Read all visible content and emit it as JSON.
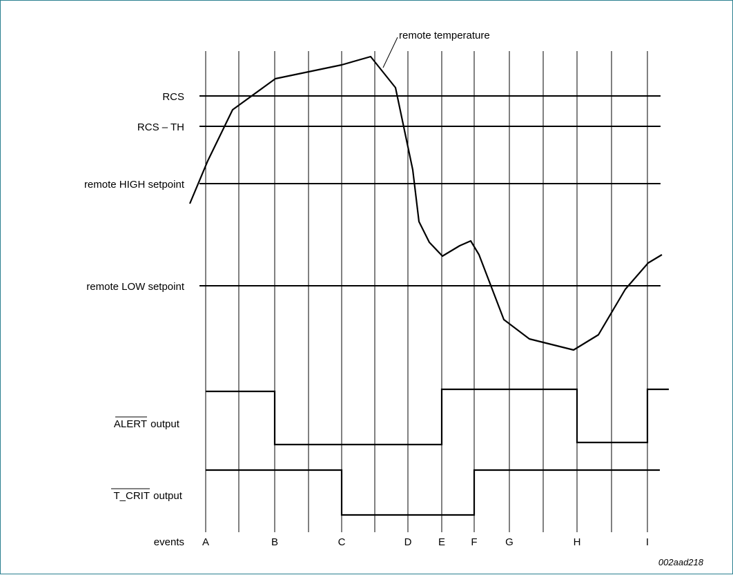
{
  "title": "",
  "curve_label": "remote temperature",
  "figure_id": "002aad218",
  "thresholds": [
    {
      "key": "rcs",
      "label": "RCS"
    },
    {
      "key": "rcs_th",
      "label": "RCS – TH"
    },
    {
      "key": "high",
      "label": "remote HIGH setpoint"
    },
    {
      "key": "low",
      "label": "remote LOW setpoint"
    }
  ],
  "signals": [
    {
      "key": "alert",
      "label_overlined": "ALERT",
      "label_suffix": " output"
    },
    {
      "key": "tcrit",
      "label_overlined": "T_CRIT",
      "label_suffix": " output"
    }
  ],
  "events_label": "events",
  "events": [
    "A",
    "B",
    "C",
    "D",
    "E",
    "F",
    "G",
    "H",
    "I"
  ],
  "colors": {
    "line": "#000000",
    "border": "#2a7f8f",
    "background": "#ffffff"
  }
}
